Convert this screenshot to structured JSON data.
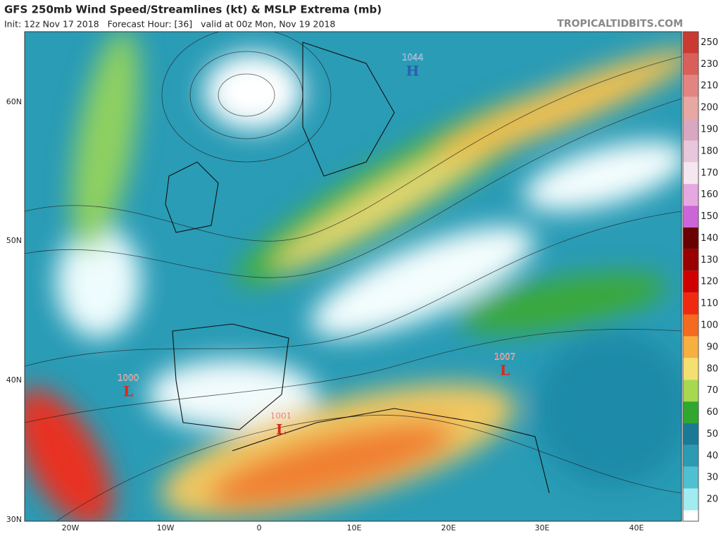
{
  "header": {
    "title": "GFS 250mb Wind Speed/Streamlines (kt) & MSLP Extrema (mb)",
    "subtitle": "Init: 12z Nov 17 2018   Forecast Hour: [36]   valid at 00z Mon, Nov 19 2018",
    "source": "TROPICALTIDBITS.COM"
  },
  "map": {
    "lat_labels": [
      "60N",
      "50N",
      "40N",
      "30N"
    ],
    "lon_labels": [
      "20W",
      "10W",
      "0",
      "10E",
      "20E",
      "30E",
      "40E"
    ],
    "pressure_centers": [
      {
        "label": "H",
        "value": "1044",
        "color": "#2a5fb0"
      },
      {
        "label": "L",
        "value": "1000",
        "color": "#d8281c"
      },
      {
        "label": "L",
        "value": "1001",
        "color": "#d8281c"
      },
      {
        "label": "L",
        "value": "1007",
        "color": "#d8281c"
      }
    ]
  },
  "colorbar": {
    "ticks": [
      250,
      230,
      210,
      200,
      190,
      180,
      170,
      160,
      150,
      140,
      130,
      120,
      110,
      100,
      90,
      80,
      70,
      60,
      50,
      40,
      30,
      20
    ],
    "colors": [
      "#c83a32",
      "#d9605a",
      "#e28580",
      "#e7a7a3",
      "#d8a7c0",
      "#e8c6dc",
      "#f5e6f0",
      "#e5a8e0",
      "#cc66d8",
      "#6b0000",
      "#9a0000",
      "#d00000",
      "#f02a10",
      "#f46a20",
      "#f6b040",
      "#f4e070",
      "#a8d850",
      "#30a830",
      "#1a7a96",
      "#2d9ab4",
      "#4fc0d0",
      "#a0ecf0"
    ]
  }
}
